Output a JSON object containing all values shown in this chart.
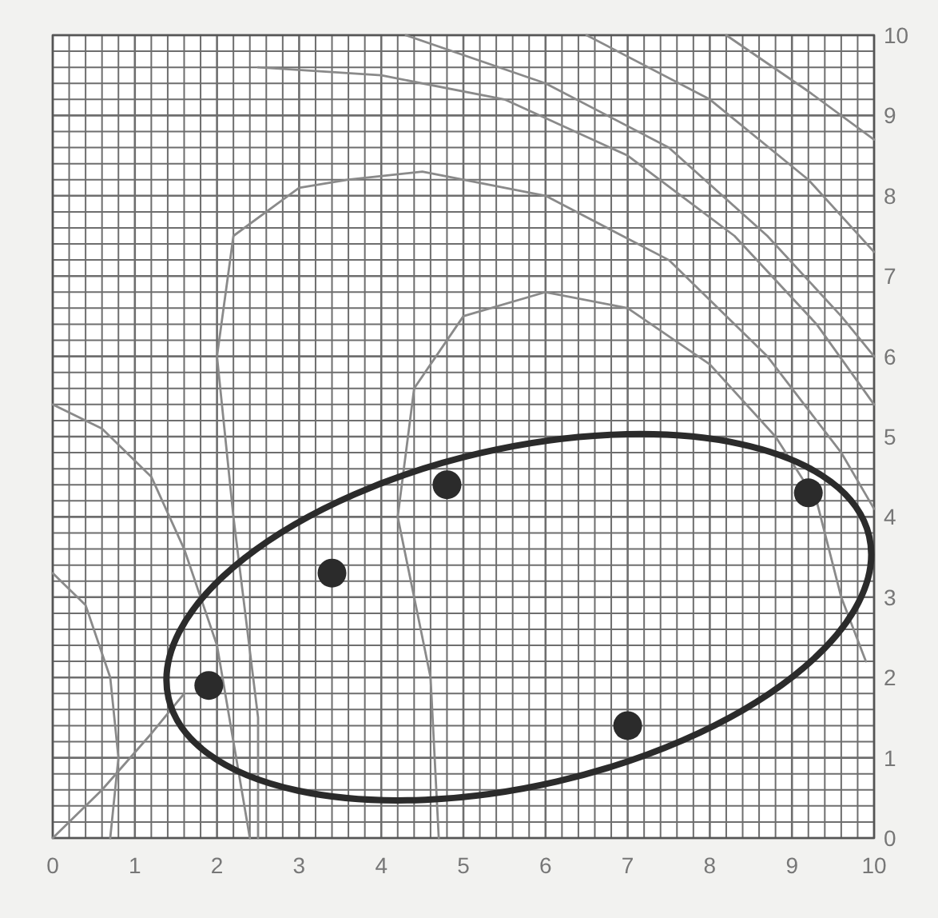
{
  "chart_data": {
    "type": "scatter",
    "xlim": [
      0,
      10
    ],
    "ylim": [
      0,
      10
    ],
    "xticks": [
      0,
      {
        "value": 0.2,
        "label": null
      },
      {
        "value": 0.4,
        "label": null
      },
      {
        "value": 0.6,
        "label": null
      },
      {
        "value": 0.8,
        "label": null
      },
      1,
      {
        "value": 1.2,
        "label": null
      },
      {
        "value": 1.4,
        "label": null
      },
      {
        "value": 1.6,
        "label": null
      },
      {
        "value": 1.8,
        "label": null
      },
      2,
      {
        "value": 2.2,
        "label": null
      },
      {
        "value": 2.4,
        "label": null
      },
      {
        "value": 2.6,
        "label": null
      },
      {
        "value": 2.8,
        "label": null
      },
      3,
      {
        "value": 3.2,
        "label": null
      },
      {
        "value": 3.4,
        "label": null
      },
      {
        "value": 3.6,
        "label": null
      },
      {
        "value": 3.8,
        "label": null
      },
      4,
      {
        "value": 4.2,
        "label": null
      },
      {
        "value": 4.4,
        "label": null
      },
      {
        "value": 4.6,
        "label": null
      },
      {
        "value": 4.8,
        "label": null
      },
      5,
      {
        "value": 5.2,
        "label": null
      },
      {
        "value": 5.4,
        "label": null
      },
      {
        "value": 5.6,
        "label": null
      },
      {
        "value": 5.8,
        "label": null
      },
      6,
      {
        "value": 6.2,
        "label": null
      },
      {
        "value": 6.4,
        "label": null
      },
      {
        "value": 6.6,
        "label": null
      },
      {
        "value": 6.8,
        "label": null
      },
      7,
      {
        "value": 7.2,
        "label": null
      },
      {
        "value": 7.4,
        "label": null
      },
      {
        "value": 7.6,
        "label": null
      },
      {
        "value": 7.8,
        "label": null
      },
      8,
      {
        "value": 8.2,
        "label": null
      },
      {
        "value": 8.4,
        "label": null
      },
      {
        "value": 8.6,
        "label": null
      },
      {
        "value": 8.8,
        "label": null
      },
      9,
      {
        "value": 9.2,
        "label": null
      },
      {
        "value": 9.4,
        "label": null
      },
      {
        "value": 9.6,
        "label": null
      },
      {
        "value": 9.8,
        "label": null
      },
      10
    ],
    "yticks": [
      0,
      {
        "value": 0.2,
        "label": null
      },
      {
        "value": 0.4,
        "label": null
      },
      {
        "value": 0.6,
        "label": null
      },
      {
        "value": 0.8,
        "label": null
      },
      1,
      {
        "value": 1.2,
        "label": null
      },
      {
        "value": 1.4,
        "label": null
      },
      {
        "value": 1.6,
        "label": null
      },
      {
        "value": 1.8,
        "label": null
      },
      2,
      {
        "value": 2.2,
        "label": null
      },
      {
        "value": 2.4,
        "label": null
      },
      {
        "value": 2.6,
        "label": null
      },
      {
        "value": 2.8,
        "label": null
      },
      3,
      {
        "value": 3.2,
        "label": null
      },
      {
        "value": 3.4,
        "label": null
      },
      {
        "value": 3.6,
        "label": null
      },
      {
        "value": 3.8,
        "label": null
      },
      4,
      {
        "value": 4.2,
        "label": null
      },
      {
        "value": 4.4,
        "label": null
      },
      {
        "value": 4.6,
        "label": null
      },
      {
        "value": 4.8,
        "label": null
      },
      5,
      {
        "value": 5.2,
        "label": null
      },
      {
        "value": 5.4,
        "label": null
      },
      {
        "value": 5.6,
        "label": null
      },
      {
        "value": 5.8,
        "label": null
      },
      6,
      {
        "value": 6.2,
        "label": null
      },
      {
        "value": 6.4,
        "label": null
      },
      {
        "value": 6.6,
        "label": null
      },
      {
        "value": 6.8,
        "label": null
      },
      7,
      {
        "value": 7.2,
        "label": null
      },
      {
        "value": 7.4,
        "label": null
      },
      {
        "value": 7.6,
        "label": null
      },
      {
        "value": 7.8,
        "label": null
      },
      8,
      {
        "value": 8.2,
        "label": null
      },
      {
        "value": 8.4,
        "label": null
      },
      {
        "value": 8.6,
        "label": null
      },
      {
        "value": 8.8,
        "label": null
      },
      9,
      {
        "value": 9.2,
        "label": null
      },
      {
        "value": 9.4,
        "label": null
      },
      {
        "value": 9.6,
        "label": null
      },
      {
        "value": 9.8,
        "label": null
      },
      10
    ],
    "grid": true,
    "series": [
      {
        "type": "line",
        "color": "#8a8a8a",
        "marker": "none",
        "x": [
          0,
          0.6,
          1.2,
          1.6,
          2.0,
          2.2,
          2.4
        ],
        "values": [
          5.4,
          5.1,
          4.5,
          3.6,
          2.4,
          1.2,
          0
        ]
      },
      {
        "type": "line",
        "color": "#8a8a8a",
        "marker": "none",
        "x": [
          0,
          0.4,
          0.7,
          0.8,
          0.7
        ],
        "values": [
          3.3,
          2.9,
          2.0,
          1.0,
          0
        ]
      },
      {
        "type": "line",
        "color": "#8a8a8a",
        "marker": "none",
        "x": [
          0,
          0.6,
          1.2,
          1.6
        ],
        "values": [
          0,
          0.6,
          1.3,
          1.8
        ]
      },
      {
        "type": "line",
        "color": "#8a8a8a",
        "marker": "none",
        "x": [
          2.5,
          2.5,
          2.2,
          2.0,
          2.2,
          3.0,
          3.6,
          4.5,
          6.0,
          7.5,
          8.7,
          9.6,
          10
        ],
        "values": [
          0,
          1.5,
          4.0,
          6.0,
          7.5,
          8.1,
          8.2,
          8.3,
          8.0,
          7.2,
          6.0,
          4.8,
          4.1
        ]
      },
      {
        "type": "line",
        "color": "#8a8a8a",
        "marker": "none",
        "x": [
          4.7,
          4.6,
          4.2,
          4.4,
          5.0,
          6.0,
          7.0,
          8.0,
          8.8,
          9.3,
          9.6,
          9.9
        ],
        "values": [
          0,
          2.0,
          4.0,
          5.6,
          6.5,
          6.8,
          6.6,
          5.9,
          5.0,
          4.2,
          3.0,
          2.2
        ]
      },
      {
        "type": "line",
        "color": "#8a8a8a",
        "marker": "none",
        "x": [
          2.5,
          4.0,
          5.5,
          7.0,
          8.3,
          9.3,
          10
        ],
        "values": [
          9.6,
          9.5,
          9.2,
          8.5,
          7.5,
          6.4,
          5.4
        ]
      },
      {
        "type": "line",
        "color": "#8a8a8a",
        "marker": "none",
        "x": [
          4.3,
          6.0,
          7.5,
          8.7,
          9.6,
          10
        ],
        "values": [
          10,
          9.4,
          8.6,
          7.5,
          6.5,
          6.0
        ]
      },
      {
        "type": "line",
        "color": "#8a8a8a",
        "marker": "none",
        "x": [
          6.5,
          8.0,
          9.2,
          10
        ],
        "values": [
          10,
          9.2,
          8.2,
          7.3
        ]
      },
      {
        "type": "line",
        "color": "#8a8a8a",
        "marker": "none",
        "x": [
          8.2,
          9.2,
          10
        ],
        "values": [
          10,
          9.3,
          8.7
        ]
      },
      {
        "type": "scatter",
        "color": "#2b2b2b",
        "marker": "circle",
        "x": [
          1.9,
          3.4,
          4.8,
          7.0,
          9.2
        ],
        "values": [
          1.9,
          3.3,
          4.4,
          1.4,
          4.3
        ]
      }
    ]
  }
}
